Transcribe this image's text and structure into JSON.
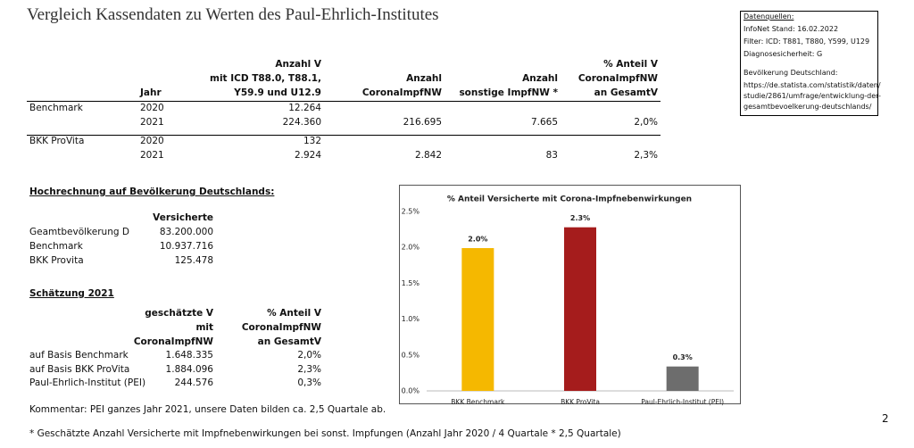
{
  "title": "Vergleich Kassendaten zu Werten des Paul-Ehrlich-Institutes",
  "sources": [
    "Datenquellen:",
    "InfoNet Stand: 16.02.2022",
    "Filter: ICD: T881, T880, Y599, U129",
    "Diagnosesicherheit: G",
    "Bevölkerung Deutschland:",
    "https://de.statista.com/statistik/daten/",
    "studie/2861/umfrage/entwicklung-der-",
    "gesamtbevoelkerung-deutschlands/"
  ],
  "main_table": {
    "headers": [
      [
        "Jahr"
      ],
      [
        "Anzahl V",
        "mit ICD T88.0, T88.1,",
        "Y59.9 und U12.9"
      ],
      [
        "Anzahl",
        "CoronaImpfNW"
      ],
      [
        "Anzahl",
        "sonstige ImpfNW *"
      ],
      [
        "% Anteil V",
        "CoronaImpfNW",
        "an GesamtV"
      ]
    ],
    "rows": [
      [
        "Benchmark",
        "2020",
        "12.264",
        null,
        null,
        null
      ],
      [
        null,
        "2021",
        "224.360",
        "216.695",
        "7.665",
        "2,0%"
      ],
      [
        "BKK ProVita",
        "2020",
        "132",
        null,
        null,
        null
      ],
      [
        null,
        "2021",
        "2.924",
        "2.842",
        "83",
        "2,3%"
      ]
    ]
  },
  "projection": {
    "heading": "Hochrechnung auf Bevölkerung Deutschlands:",
    "header": "Versicherte",
    "rows": [
      [
        "Geamtbevölkerung D",
        "83.200.000"
      ],
      [
        "Benchmark",
        "10.937.716"
      ],
      [
        "BKK Provita",
        "125.478"
      ]
    ]
  },
  "estimate": {
    "heading": "Schätzung 2021",
    "headers": [
      [
        "geschätzte V",
        "mit",
        "CoronaImpfNW"
      ],
      [
        "% Anteil V",
        "CoronaImpfNW",
        "an GesamtV"
      ]
    ],
    "rows": [
      [
        "auf Basis Benchmark",
        "1.648.335",
        "2,0%"
      ],
      [
        "auf Basis BKK ProVita",
        "1.884.096",
        "2,3%"
      ],
      [
        "Paul-Ehrlich-Institut (PEI)",
        "244.576",
        "0,3%"
      ]
    ]
  },
  "comment": "Kommentar: PEI ganzes Jahr 2021, unsere Daten bilden ca. 2,5 Quartale ab.",
  "footnote": "* Geschätzte Anzahl Versicherte mit Impfnebenwirkungen bei sonst. Impfungen (Anzahl Jahr 2020 / 4 Quartale * 2,5 Quartale)",
  "page_number": "2",
  "chart_data": {
    "type": "bar",
    "title": "% Anteil Versicherte mit Corona-Impfnebenwirkungen",
    "categories": [
      "BKK Benchmark",
      "BKK ProVita",
      "Paul-Ehrlich-Institut (PEI)"
    ],
    "values": [
      1.99,
      2.28,
      0.34
    ],
    "value_labels": [
      "2.0%",
      "2.3%",
      "0.3%"
    ],
    "colors": [
      "#f5b800",
      "#a51c1c",
      "#6d6d6d"
    ],
    "ylim": [
      0,
      2.5
    ],
    "yticks": [
      {
        "value": 0,
        "label": "0.0%"
      },
      {
        "value": 0.5,
        "label": "0.5%"
      },
      {
        "value": 1,
        "label": "1.0%"
      },
      {
        "value": 1.5,
        "label": "1.5%"
      },
      {
        "value": 2,
        "label": "2.0%"
      },
      {
        "value": 2.5,
        "label": "2.5%"
      }
    ],
    "grid": false
  }
}
